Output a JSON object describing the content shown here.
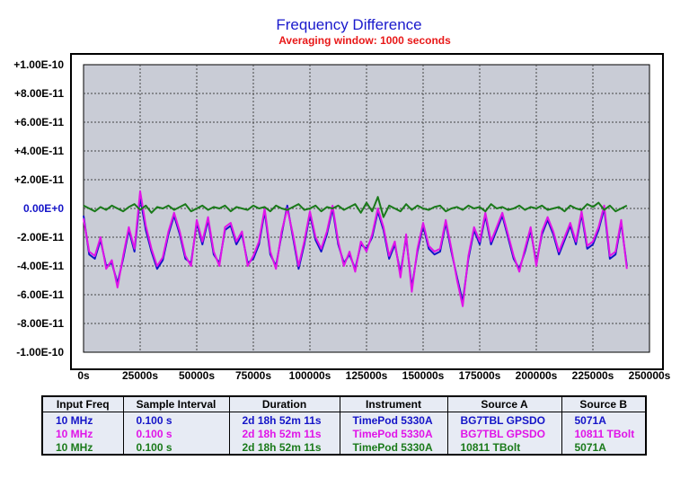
{
  "chart_data": {
    "type": "line",
    "title": "Frequency Difference",
    "subtitle": "Averaging window: 1000 seconds",
    "xlim": [
      0,
      250000
    ],
    "ylim": [
      -1e-10,
      1e-10
    ],
    "x_ticks": [
      "0s",
      "25000s",
      "50000s",
      "75000s",
      "100000s",
      "125000s",
      "150000s",
      "175000s",
      "200000s",
      "225000s",
      "250000s"
    ],
    "y_ticks": [
      "+1.00E-10",
      "+8.00E-11",
      "+6.00E-11",
      "+4.00E-11",
      "+2.00E-11",
      "0.00E+0",
      "-2.00E-11",
      "-4.00E-11",
      "-6.00E-11",
      "-8.00E-11",
      "-1.00E-10"
    ],
    "grid": true,
    "plot_background": "#c9ccd6",
    "series": [
      {
        "color": "#1414c8",
        "x": [
          0,
          2500,
          5000,
          7500,
          10000,
          12500,
          15000,
          17500,
          20000,
          22500,
          25000,
          27500,
          30000,
          32500,
          35000,
          37500,
          40000,
          42500,
          45000,
          47500,
          50000,
          52500,
          55000,
          57500,
          60000,
          62500,
          65000,
          67500,
          70000,
          72500,
          75000,
          77500,
          80000,
          82500,
          85000,
          87500,
          90000,
          92500,
          95000,
          97500,
          100000,
          102500,
          105000,
          107500,
          110000,
          112500,
          115000,
          117500,
          120000,
          122500,
          125000,
          127500,
          130000,
          132500,
          135000,
          137500,
          140000,
          142500,
          145000,
          147500,
          150000,
          152500,
          155000,
          157500,
          160000,
          162500,
          165000,
          167500,
          170000,
          172500,
          175000,
          177500,
          180000,
          182500,
          185000,
          187500,
          190000,
          192500,
          195000,
          197500,
          200000,
          202500,
          205000,
          207500,
          210000,
          212500,
          215000,
          217500,
          220000,
          222500,
          225000,
          227500,
          230000,
          232500,
          235000,
          237500,
          240000
        ],
        "y": [
          -5e-12,
          -3.2e-11,
          -3.5e-11,
          -2.2e-11,
          -4e-11,
          -3.8e-11,
          -5.2e-11,
          -3.5e-11,
          -1.5e-11,
          -3e-11,
          8e-12,
          -1.5e-11,
          -3e-11,
          -4.2e-11,
          -3.6e-11,
          -1.8e-11,
          -5e-12,
          -1.8e-11,
          -3.5e-11,
          -3.8e-11,
          -1e-11,
          -2.5e-11,
          -8e-12,
          -3.2e-11,
          -3.8e-11,
          -1.5e-11,
          -1.2e-11,
          -2.5e-11,
          -1.8e-11,
          -3.8e-11,
          -3.5e-11,
          -2.5e-11,
          -2e-12,
          -3.2e-11,
          -4e-11,
          -1.8e-11,
          2e-12,
          -2e-11,
          -4.2e-11,
          -2.5e-11,
          -4e-12,
          -2.2e-11,
          -3e-11,
          -1.8e-11,
          0.0,
          -2.5e-11,
          -3.8e-11,
          -3.2e-11,
          -4.2e-11,
          -2.5e-11,
          -2.8e-11,
          -2e-11,
          -2e-12,
          -1.5e-11,
          -3.5e-11,
          -2.5e-11,
          -4.5e-11,
          -2e-11,
          -5.5e-11,
          -3e-11,
          -1.2e-11,
          -2.8e-11,
          -3.2e-11,
          -3e-11,
          -1e-11,
          -3e-11,
          -4.8e-11,
          -6.5e-11,
          -3.5e-11,
          -1.5e-11,
          -2.5e-11,
          -5e-12,
          -2.5e-11,
          -1.5e-11,
          -5e-12,
          -2e-11,
          -3.5e-11,
          -4.2e-11,
          -3e-11,
          -1.5e-11,
          -3.8e-11,
          -1.8e-11,
          -8e-12,
          -1.8e-11,
          -3.2e-11,
          -2.2e-11,
          -1.2e-11,
          -2.5e-11,
          -4e-12,
          -2.8e-11,
          -2.5e-11,
          -1.5e-11,
          0.0,
          -3.5e-11,
          -3.2e-11,
          -1e-11,
          -4e-11
        ]
      },
      {
        "color": "#e014e8",
        "x": [
          0,
          2500,
          5000,
          7500,
          10000,
          12500,
          15000,
          17500,
          20000,
          22500,
          25000,
          27500,
          30000,
          32500,
          35000,
          37500,
          40000,
          42500,
          45000,
          47500,
          50000,
          52500,
          55000,
          57500,
          60000,
          62500,
          65000,
          67500,
          70000,
          72500,
          75000,
          77500,
          80000,
          82500,
          85000,
          87500,
          90000,
          92500,
          95000,
          97500,
          100000,
          102500,
          105000,
          107500,
          110000,
          112500,
          115000,
          117500,
          120000,
          122500,
          125000,
          127500,
          130000,
          132500,
          135000,
          137500,
          140000,
          142500,
          145000,
          147500,
          150000,
          152500,
          155000,
          157500,
          160000,
          162500,
          165000,
          167500,
          170000,
          172500,
          175000,
          177500,
          180000,
          182500,
          185000,
          187500,
          190000,
          192500,
          195000,
          197500,
          200000,
          202500,
          205000,
          207500,
          210000,
          212500,
          215000,
          217500,
          220000,
          222500,
          225000,
          227500,
          230000,
          232500,
          235000,
          237500,
          240000
        ],
        "y": [
          -7e-12,
          -3e-11,
          -3.3e-11,
          -2e-11,
          -4.2e-11,
          -3.6e-11,
          -5.5e-11,
          -3.3e-11,
          -1.3e-11,
          -2.8e-11,
          1.2e-11,
          -1.2e-11,
          -2.8e-11,
          -4e-11,
          -3.4e-11,
          -1.6e-11,
          -3e-12,
          -1.6e-11,
          -3.3e-11,
          -4e-11,
          -8e-12,
          -2.3e-11,
          -6e-12,
          -3e-11,
          -4e-11,
          -1.3e-11,
          -1e-11,
          -2.3e-11,
          -1.6e-11,
          -4e-11,
          -3.3e-11,
          -2.3e-11,
          0.0,
          -3e-11,
          -4.2e-11,
          -1.6e-11,
          0.0,
          -1.8e-11,
          -4e-11,
          -2.3e-11,
          -2e-12,
          -2e-11,
          -2.8e-11,
          -1.6e-11,
          2e-12,
          -2.3e-11,
          -4e-11,
          -3e-11,
          -4.4e-11,
          -2.3e-11,
          -3e-11,
          -1.8e-11,
          0.0,
          -1.3e-11,
          -3.3e-11,
          -2.3e-11,
          -4.8e-11,
          -1.8e-11,
          -5.8e-11,
          -2.8e-11,
          -1e-11,
          -2.6e-11,
          -3e-11,
          -2.8e-11,
          -8e-12,
          -2.8e-11,
          -5e-11,
          -6.8e-11,
          -3.3e-11,
          -1.3e-11,
          -2.3e-11,
          -3e-12,
          -2.3e-11,
          -1.3e-11,
          -3e-12,
          -1.8e-11,
          -3.3e-11,
          -4.4e-11,
          -2.8e-11,
          -1.3e-11,
          -4e-11,
          -1.6e-11,
          -6e-12,
          -1.6e-11,
          -3e-11,
          -2e-11,
          -1e-11,
          -2.3e-11,
          -2e-12,
          -2.6e-11,
          -2.3e-11,
          -1.3e-11,
          2e-12,
          -3.3e-11,
          -3e-11,
          -8e-12,
          -4.2e-11
        ]
      },
      {
        "color": "#1a7a1a",
        "x": [
          0,
          2500,
          5000,
          7500,
          10000,
          12500,
          15000,
          17500,
          20000,
          22500,
          25000,
          27500,
          30000,
          32500,
          35000,
          37500,
          40000,
          42500,
          45000,
          47500,
          50000,
          52500,
          55000,
          57500,
          60000,
          62500,
          65000,
          67500,
          70000,
          72500,
          75000,
          77500,
          80000,
          82500,
          85000,
          87500,
          90000,
          92500,
          95000,
          97500,
          100000,
          102500,
          105000,
          107500,
          110000,
          112500,
          115000,
          117500,
          120000,
          122500,
          125000,
          127500,
          130000,
          132500,
          135000,
          137500,
          140000,
          142500,
          145000,
          147500,
          150000,
          152500,
          155000,
          157500,
          160000,
          162500,
          165000,
          167500,
          170000,
          172500,
          175000,
          177500,
          180000,
          182500,
          185000,
          187500,
          190000,
          192500,
          195000,
          197500,
          200000,
          202500,
          205000,
          207500,
          210000,
          212500,
          215000,
          217500,
          220000,
          222500,
          225000,
          227500,
          230000,
          232500,
          235000,
          237500,
          240000
        ],
        "y": [
          2e-12,
          0.0,
          -2e-12,
          1e-12,
          -1e-12,
          2e-12,
          0.0,
          -2e-12,
          1e-12,
          3e-12,
          -1e-12,
          2e-12,
          -3e-12,
          1e-12,
          0.0,
          2e-12,
          -1e-12,
          1e-12,
          3e-12,
          -2e-12,
          0.0,
          2e-12,
          -1e-12,
          1e-12,
          0.0,
          2e-12,
          -2e-12,
          1e-12,
          0.0,
          -1e-12,
          2e-12,
          0.0,
          1e-12,
          -2e-12,
          2e-12,
          0.0,
          -1e-12,
          1e-12,
          3e-12,
          -1e-12,
          0.0,
          2e-12,
          -2e-12,
          1e-12,
          0.0,
          2e-12,
          -1e-12,
          1e-12,
          3e-12,
          -3e-12,
          4e-12,
          -2e-12,
          8e-12,
          -6e-12,
          2e-12,
          0.0,
          -2e-12,
          3e-12,
          -1e-12,
          2e-12,
          0.0,
          -1e-12,
          1e-12,
          2e-12,
          -2e-12,
          0.0,
          1e-12,
          -1e-12,
          2e-12,
          0.0,
          1e-12,
          -2e-12,
          3e-12,
          0.0,
          1e-12,
          -1e-12,
          0.0,
          2e-12,
          -1e-12,
          1e-12,
          0.0,
          2e-12,
          -1e-12,
          0.0,
          1e-12,
          -2e-12,
          2e-12,
          0.0,
          -1e-12,
          3e-12,
          1e-12,
          4e-12,
          -1e-12,
          2e-12,
          -2e-12,
          0.0,
          2e-12
        ]
      }
    ]
  },
  "table": {
    "headers": [
      "Input Freq",
      "Sample Interval",
      "Duration",
      "Instrument",
      "Source A",
      "Source B"
    ],
    "rows": [
      {
        "color": "#1414c8",
        "cells": [
          "10 MHz",
          "0.100 s",
          "2d 18h 52m 11s",
          "TimePod 5330A",
          "BG7TBL GPSDO",
          "5071A"
        ]
      },
      {
        "color": "#e014e8",
        "cells": [
          "10 MHz",
          "0.100 s",
          "2d 18h 52m 11s",
          "TimePod 5330A",
          "BG7TBL GPSDO",
          "10811 TBolt"
        ]
      },
      {
        "color": "#1a7a1a",
        "cells": [
          "10 MHz",
          "0.100 s",
          "2d 18h 52m 11s",
          "TimePod 5330A",
          "10811 TBolt",
          "5071A"
        ]
      }
    ]
  },
  "zero_tick_color": "#1414c8"
}
